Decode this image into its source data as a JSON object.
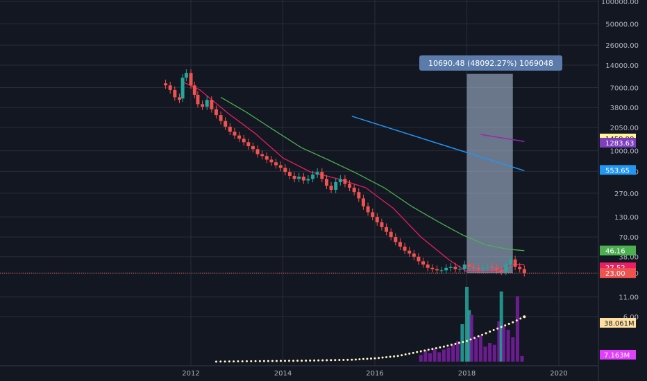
{
  "chart_data": {
    "type": "candlestick",
    "title": "",
    "y_scale": "log",
    "x_ticks": [
      "2012",
      "2014",
      "2016",
      "2018",
      "2020"
    ],
    "x_tick_years": [
      2012,
      2014,
      2016,
      2018,
      2020
    ],
    "y_ticks": [
      100000,
      50000,
      26000,
      14000,
      7000,
      3800,
      2050,
      1000,
      530,
      270,
      130,
      70,
      38,
      23,
      11,
      6
    ],
    "y_tick_labels": [
      "100000.00",
      "50000.00",
      "26000.00",
      "14000.00",
      "7000.00",
      "3800.00",
      "2050.00",
      "1000.00",
      "530.00",
      "270.00",
      "130.00",
      "70.00",
      "38.00",
      "23.00",
      "11.00",
      "6.00"
    ],
    "grid": true,
    "price_series": {
      "t": [
        2011.45,
        2011.55,
        2011.65,
        2011.75,
        2011.82,
        2011.9,
        2012.0,
        2012.08,
        2012.15,
        2012.25,
        2012.35,
        2012.45,
        2012.55,
        2012.65,
        2012.75,
        2012.85,
        2012.95,
        2013.05,
        2013.15,
        2013.25,
        2013.35,
        2013.45,
        2013.55,
        2013.65,
        2013.75,
        2013.85,
        2013.95,
        2014.05,
        2014.15,
        2014.25,
        2014.35,
        2014.45,
        2014.55,
        2014.65,
        2014.75,
        2014.85,
        2014.95,
        2015.05,
        2015.15,
        2015.25,
        2015.35,
        2015.45,
        2015.55,
        2015.65,
        2015.75,
        2015.85,
        2015.95,
        2016.05,
        2016.15,
        2016.25,
        2016.35,
        2016.45,
        2016.55,
        2016.65,
        2016.75,
        2016.85,
        2016.95,
        2017.05,
        2017.15,
        2017.25,
        2017.35,
        2017.45,
        2017.55,
        2017.65,
        2017.75,
        2017.85,
        2017.95,
        2018.05,
        2018.15,
        2018.25,
        2018.35,
        2018.45,
        2018.55,
        2018.65,
        2018.75,
        2018.85,
        2018.95,
        2019.05,
        2019.15,
        2019.25
      ],
      "close": [
        7500,
        6500,
        5200,
        4800,
        9500,
        11000,
        7500,
        5600,
        4200,
        3900,
        4800,
        3600,
        3000,
        2500,
        2100,
        1800,
        1600,
        1450,
        1300,
        1150,
        1050,
        900,
        850,
        760,
        700,
        640,
        590,
        520,
        460,
        420,
        450,
        400,
        420,
        480,
        520,
        420,
        340,
        300,
        380,
        420,
        360,
        320,
        280,
        230,
        180,
        150,
        130,
        110,
        95,
        82,
        70,
        60,
        52,
        46,
        42,
        38,
        33,
        30,
        27,
        26,
        25,
        25,
        27,
        28,
        26,
        26,
        30,
        28,
        27,
        26,
        27,
        28,
        27,
        25,
        24,
        30,
        35,
        28,
        26,
        23
      ],
      "open": [
        8000,
        7500,
        6500,
        5200,
        5000,
        9500,
        11000,
        7500,
        5600,
        4200,
        3900,
        4800,
        3600,
        3000,
        2500,
        2100,
        1800,
        1600,
        1450,
        1300,
        1150,
        1050,
        900,
        850,
        760,
        700,
        640,
        590,
        520,
        460,
        420,
        450,
        400,
        420,
        480,
        520,
        420,
        340,
        300,
        380,
        420,
        360,
        320,
        280,
        230,
        180,
        150,
        130,
        110,
        95,
        82,
        70,
        60,
        52,
        46,
        42,
        38,
        33,
        30,
        27,
        26,
        25,
        25,
        27,
        28,
        26,
        26,
        30,
        28,
        27,
        26,
        27,
        28,
        27,
        25,
        24,
        30,
        35,
        28,
        26
      ]
    },
    "ma_fast": {
      "t": [
        2011.8,
        2012.2,
        2012.8,
        2013.4,
        2014.0,
        2014.6,
        2015.2,
        2015.8,
        2016.4,
        2017.0,
        2017.6,
        2018.0,
        2018.6,
        2019.0,
        2019.25
      ],
      "v": [
        8500,
        6500,
        3200,
        1700,
        800,
        520,
        420,
        320,
        170,
        70,
        35,
        24,
        24,
        30,
        30
      ]
    },
    "ma_slow": {
      "t": [
        2012.65,
        2013.2,
        2013.8,
        2014.4,
        2015.0,
        2015.6,
        2016.2,
        2016.8,
        2017.4,
        2017.9,
        2018.4,
        2018.9,
        2019.25
      ],
      "v": [
        5200,
        3300,
        1900,
        1100,
        750,
        500,
        320,
        180,
        110,
        75,
        55,
        48,
        46
      ]
    },
    "trend_blue": {
      "t": [
        2015.5,
        2019.25
      ],
      "v": [
        2900,
        540
      ]
    },
    "trend_purple": {
      "t": [
        2018.3,
        2019.25
      ],
      "v": [
        1650,
        1330
      ]
    },
    "volume": {
      "t": [
        2017.0,
        2017.1,
        2017.2,
        2017.3,
        2017.4,
        2017.5,
        2017.6,
        2017.7,
        2017.8,
        2017.9,
        2018.0,
        2018.05,
        2018.1,
        2018.2,
        2018.3,
        2018.4,
        2018.5,
        2018.6,
        2018.7,
        2018.75,
        2018.8,
        2018.9,
        2019.0,
        2019.1,
        2019.2
      ],
      "v": [
        0.7,
        1.2,
        0.9,
        1.4,
        1.0,
        1.3,
        1.5,
        1.8,
        2.2,
        4.0,
        8.0,
        5.5,
        5.0,
        2.5,
        2.8,
        1.6,
        2.0,
        1.8,
        4.3,
        7.5,
        3.8,
        3.4,
        2.6,
        7.0,
        0.6
      ]
    },
    "obv_dotted": {
      "t": [
        2012.55,
        2013.5,
        2014.5,
        2015.5,
        2016.0,
        2016.5,
        2017.0,
        2017.5,
        2018.0,
        2018.5,
        2019.0,
        2019.25
      ],
      "v": [
        0,
        0.05,
        0.1,
        0.2,
        0.35,
        0.6,
        1.1,
        1.6,
        2.2,
        3.2,
        4.2,
        4.8
      ]
    },
    "tooltip": {
      "text": "10690.48 (48092.27%) 1069048"
    },
    "price_badges": [
      {
        "label": "1458.98",
        "price": 1458.98,
        "bg": "#fff59d",
        "fg": "#131722"
      },
      {
        "label": "1283.63",
        "price": 1283.63,
        "bg": "#7e3fbf",
        "fg": "#ffffff"
      },
      {
        "label": "553.65",
        "price": 553.65,
        "bg": "#2196f3",
        "fg": "#ffffff"
      },
      {
        "label": "46.16",
        "price": 46.16,
        "bg": "#4caf50",
        "fg": "#ffffff"
      },
      {
        "label": "27.52",
        "price": 27.52,
        "bg": "#e91e63",
        "fg": "#ffffff"
      },
      {
        "label": "23.00",
        "price": 23.0,
        "bg": "#ef5350",
        "fg": "#ffffff"
      }
    ],
    "volume_badges": [
      {
        "label": "38.061M",
        "bg": "#ffe0a0",
        "fg": "#131722"
      },
      {
        "label": "7.163M",
        "bg": "#e040fb",
        "fg": "#ffffff"
      }
    ],
    "colors": {
      "up": "#26a69a",
      "down": "#ef5350",
      "ma_fast": "#e91e63",
      "ma_slow": "#4caf50",
      "trend_blue": "#2196f3",
      "trend_purple": "#9c27b0",
      "vol_up": "#26a69a",
      "vol_down": "#7b1fa2",
      "obv": "#fff8c4",
      "highlight": "#b2c4e0"
    }
  }
}
